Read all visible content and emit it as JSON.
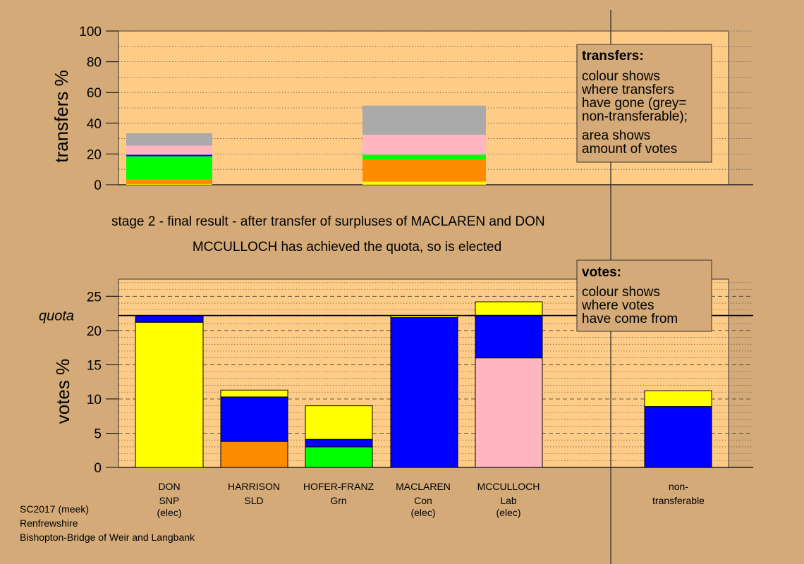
{
  "colors": {
    "SNP": "#ffff00",
    "SLD": "#ff8c00",
    "Grn": "#00ff00",
    "Con": "#0000ff",
    "Lab": "#ffb6c1",
    "non-transferable": "#aaaaaa",
    "background": "#d4aa78",
    "plot_area": "#ffcc88"
  },
  "stage_text": {
    "line1": "stage 2 - final result - after transfer of surpluses of MACLAREN and DON",
    "line2": "MCCULLOCH has achieved the quota, so is elected"
  },
  "legend_boxes": {
    "transfers": {
      "heading": "transfers:",
      "lines": [
        "colour shows",
        "where transfers",
        "have gone (grey=",
        "non-transferable);",
        "area shows",
        "amount of votes"
      ]
    },
    "votes": {
      "heading": "votes:",
      "lines": [
        "colour shows",
        "where votes",
        "have come from"
      ]
    }
  },
  "footer": {
    "line1": "SC2017 (meek)",
    "line2": "Renfrewshire",
    "line3": "Bishopton-Bridge of Weir and Langbank"
  },
  "chart_data": [
    {
      "type": "bar",
      "ylabel": "transfers %",
      "ylim": [
        0,
        100
      ],
      "yticks": [
        0,
        20,
        40,
        60,
        80,
        100
      ],
      "bars": [
        {
          "from": "DON",
          "total": 33.5,
          "segments": [
            {
              "party": "SNP",
              "value": 0.5
            },
            {
              "party": "SLD",
              "value": 3
            },
            {
              "party": "Grn",
              "value": 15
            },
            {
              "party": "Con",
              "value": 1
            },
            {
              "party": "Lab",
              "value": 6
            },
            {
              "party": "non-transferable",
              "value": 8
            }
          ]
        },
        {
          "from": "MACLAREN",
          "total": 51.5,
          "segments": [
            {
              "party": "SNP",
              "value": 2
            },
            {
              "party": "SLD",
              "value": 14.5
            },
            {
              "party": "Grn",
              "value": 3
            },
            {
              "party": "Con",
              "value": 0
            },
            {
              "party": "Lab",
              "value": 13
            },
            {
              "party": "non-transferable",
              "value": 19
            }
          ]
        }
      ]
    },
    {
      "type": "bar",
      "ylabel": "votes %",
      "ylim": [
        0,
        27.5
      ],
      "yticks": [
        0,
        5,
        10,
        15,
        20,
        25
      ],
      "quota": 22.2,
      "quota_label": "quota",
      "candidates": [
        {
          "name": "DON",
          "party": "SNP",
          "status": "(elec)",
          "segments": [
            {
              "party": "SNP",
              "value": 21.2
            },
            {
              "party": "Con",
              "value": 1.0
            }
          ]
        },
        {
          "name": "HARRISON",
          "party": "SLD",
          "status": "",
          "segments": [
            {
              "party": "SLD",
              "value": 3.8
            },
            {
              "party": "Con",
              "value": 6.5
            },
            {
              "party": "SNP",
              "value": 1.0
            }
          ]
        },
        {
          "name": "HOFER-FRANZ",
          "party": "Grn",
          "status": "",
          "segments": [
            {
              "party": "Grn",
              "value": 3.0
            },
            {
              "party": "Con",
              "value": 1.1
            },
            {
              "party": "SNP",
              "value": 4.9
            }
          ]
        },
        {
          "name": "MACLAREN",
          "party": "Con",
          "status": "(elec)",
          "segments": [
            {
              "party": "Con",
              "value": 21.9
            },
            {
              "party": "SNP",
              "value": 0.3
            }
          ]
        },
        {
          "name": "MCCULLOCH",
          "party": "Lab",
          "status": "(elec)",
          "segments": [
            {
              "party": "Lab",
              "value": 16.0
            },
            {
              "party": "Con",
              "value": 6.2
            },
            {
              "party": "SNP",
              "value": 2.0
            }
          ]
        },
        {
          "name": "non-",
          "party": "transferable",
          "status": "",
          "segments": [
            {
              "party": "Con",
              "value": 8.9
            },
            {
              "party": "SNP",
              "value": 2.3
            }
          ]
        }
      ]
    }
  ]
}
